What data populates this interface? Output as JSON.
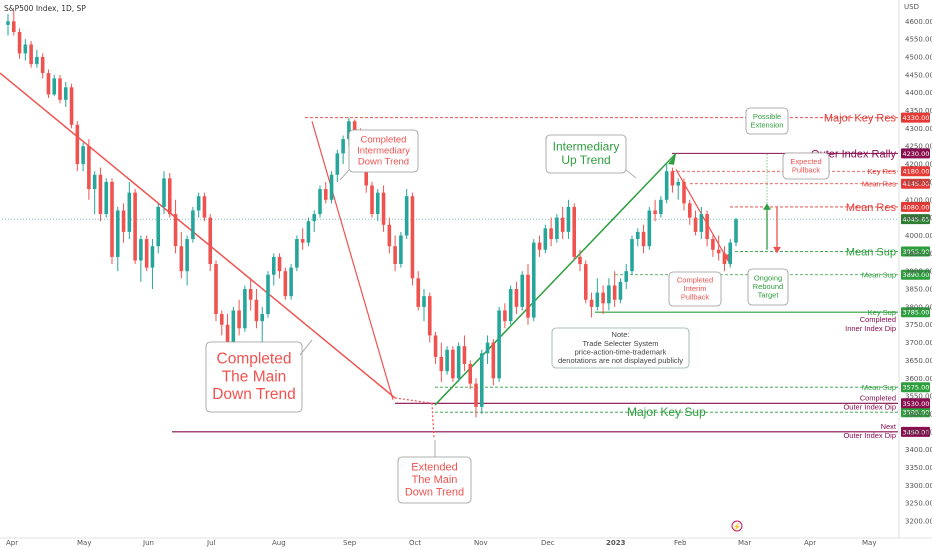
{
  "header": {
    "title": "S&P500 Index, 1D, SP",
    "currency": "USD"
  },
  "chart_data": {
    "type": "candlestick",
    "title": "S&P500 Index, 1D, SP",
    "ylim": [
      3175,
      4640
    ],
    "y_ticks": [
      3200,
      3250,
      3300,
      3350,
      3400,
      3450,
      3500,
      3550,
      3600,
      3650,
      3700,
      3750,
      3800,
      3850,
      3900,
      3950,
      4000,
      4050,
      4100,
      4150,
      4200,
      4250,
      4300,
      4350,
      4400,
      4450,
      4500,
      4550,
      4600
    ],
    "x_ticks": [
      "Apr",
      "May",
      "Jun",
      "Jul",
      "Aug",
      "Sep",
      "Oct",
      "Nov",
      "Dec",
      "2023",
      "Feb",
      "Mar",
      "Apr",
      "May"
    ],
    "last_price": "4045.65",
    "levels": [
      {
        "name": "Major Key Res",
        "value": 4330,
        "tag": "4330.00",
        "color": "#e53935",
        "style": "dashed",
        "label_size": "big",
        "x0": 305
      },
      {
        "name": "Outer Index Rally",
        "value": 4230,
        "tag": "4230.00",
        "color": "#880e4f",
        "style": "solid",
        "label_size": "big",
        "x0": 672
      },
      {
        "name": "Key Res",
        "value": 4180,
        "tag": "4180.00",
        "color": "#e53935",
        "style": "dashed",
        "label_size": "small",
        "x0": 672
      },
      {
        "name": "Mean Res",
        "value": 4145,
        "tag": "4145.00",
        "color": "#e53935",
        "style": "dashed",
        "label_size": "small",
        "x0": 690
      },
      {
        "name": "Mean Res",
        "value": 4080,
        "tag": "4080.00",
        "color": "#e53935",
        "style": "dashed",
        "label_size": "big",
        "x0": 730
      },
      {
        "name": "Mean Sup",
        "value": 3955,
        "tag": "3955.00",
        "color": "#2e9e3e",
        "style": "dashed",
        "label_size": "big",
        "x0": 735
      },
      {
        "name": "Mean Sup",
        "value": 3890,
        "tag": "3890.00",
        "color": "#2e9e3e",
        "style": "dashed",
        "label_size": "small",
        "x0": 615
      },
      {
        "name": "Key Sup",
        "value": 3785,
        "tag": "3785.00",
        "color": "#2e9e3e",
        "style": "solid",
        "label_size": "small",
        "x0": 595
      },
      {
        "name": "Mean Sup",
        "value": 3575,
        "tag": "3575.00",
        "color": "#2e9e3e",
        "style": "dashed",
        "label_size": "small",
        "x0": 435
      },
      {
        "name": "Major Key Sup",
        "value": 3505,
        "tag": "3505.00",
        "color": "#2e9e3e",
        "style": "dashed",
        "label_size": "none",
        "x0": 435
      },
      {
        "name": "Completed Outer Index Dip",
        "value": 3530,
        "tag": "3530.00",
        "color": "#880e4f",
        "style": "solid",
        "label_size": "none",
        "x0": 395
      },
      {
        "name": "Next Outer Index Dip",
        "value": 3450,
        "tag": "3450.00",
        "color": "#880e4f",
        "style": "solid",
        "label_size": "none",
        "x0": 172
      }
    ],
    "series": [
      {
        "name": "candles",
        "ohlc": [
          [
            4590,
            4620,
            4560,
            4600
          ],
          [
            4600,
            4630,
            4560,
            4570
          ],
          [
            4570,
            4580,
            4495,
            4510
          ],
          [
            4510,
            4550,
            4490,
            4535
          ],
          [
            4535,
            4545,
            4470,
            4480
          ],
          [
            4480,
            4520,
            4470,
            4500
          ],
          [
            4500,
            4510,
            4440,
            4455
          ],
          [
            4455,
            4465,
            4385,
            4395
          ],
          [
            4395,
            4450,
            4390,
            4440
          ],
          [
            4440,
            4450,
            4370,
            4380
          ],
          [
            4380,
            4430,
            4360,
            4415
          ],
          [
            4415,
            4425,
            4300,
            4310
          ],
          [
            4310,
            4320,
            4180,
            4200
          ],
          [
            4200,
            4260,
            4180,
            4250
          ],
          [
            4250,
            4270,
            4100,
            4130
          ],
          [
            4130,
            4180,
            4060,
            4170
          ],
          [
            4170,
            4190,
            4040,
            4060
          ],
          [
            4060,
            4160,
            4050,
            4150
          ],
          [
            4150,
            4160,
            3920,
            3940
          ],
          [
            3940,
            4080,
            3900,
            4070
          ],
          [
            4070,
            4090,
            3980,
            4010
          ],
          [
            4010,
            4150,
            3990,
            4120
          ],
          [
            4120,
            4130,
            3920,
            3930
          ],
          [
            3930,
            4000,
            3870,
            3990
          ],
          [
            3990,
            4000,
            3900,
            3910
          ],
          [
            3910,
            3990,
            3850,
            3970
          ],
          [
            3970,
            4090,
            3950,
            4080
          ],
          [
            4080,
            4180,
            4060,
            4160
          ],
          [
            4160,
            4175,
            4050,
            4060
          ],
          [
            4060,
            4100,
            3950,
            3970
          ],
          [
            3970,
            4010,
            3880,
            3900
          ],
          [
            3900,
            4000,
            3860,
            3990
          ],
          [
            3990,
            4080,
            3980,
            4070
          ],
          [
            4070,
            4120,
            4050,
            4110
          ],
          [
            4110,
            4120,
            4040,
            4050
          ],
          [
            4050,
            4060,
            3900,
            3920
          ],
          [
            3920,
            3930,
            3760,
            3780
          ],
          [
            3780,
            3790,
            3720,
            3750
          ],
          [
            3750,
            3780,
            3640,
            3670
          ],
          [
            3670,
            3800,
            3660,
            3790
          ],
          [
            3790,
            3820,
            3720,
            3740
          ],
          [
            3740,
            3860,
            3730,
            3850
          ],
          [
            3850,
            3880,
            3790,
            3820
          ],
          [
            3820,
            3850,
            3740,
            3760
          ],
          [
            3760,
            3800,
            3700,
            3780
          ],
          [
            3780,
            3900,
            3770,
            3890
          ],
          [
            3890,
            3950,
            3860,
            3940
          ],
          [
            3940,
            3950,
            3880,
            3900
          ],
          [
            3900,
            3910,
            3820,
            3830
          ],
          [
            3830,
            3920,
            3820,
            3910
          ],
          [
            3910,
            4000,
            3900,
            3990
          ],
          [
            3990,
            4020,
            3960,
            3980
          ],
          [
            3980,
            4050,
            3970,
            4040
          ],
          [
            4040,
            4070,
            4010,
            4060
          ],
          [
            4060,
            4140,
            4050,
            4130
          ],
          [
            4130,
            4150,
            4090,
            4100
          ],
          [
            4100,
            4180,
            4090,
            4170
          ],
          [
            4170,
            4240,
            4150,
            4230
          ],
          [
            4230,
            4280,
            4200,
            4270
          ],
          [
            4270,
            4330,
            4250,
            4320
          ],
          [
            4320,
            4325,
            4260,
            4280
          ],
          [
            4280,
            4300,
            4200,
            4210
          ],
          [
            4210,
            4220,
            4120,
            4140
          ],
          [
            4140,
            4150,
            4050,
            4060
          ],
          [
            4060,
            4130,
            4040,
            4120
          ],
          [
            4120,
            4140,
            4010,
            4030
          ],
          [
            4030,
            4050,
            3950,
            3970
          ],
          [
            3970,
            4000,
            3900,
            3920
          ],
          [
            3920,
            4010,
            3910,
            4000
          ],
          [
            4000,
            4130,
            3990,
            4110
          ],
          [
            4110,
            4120,
            3860,
            3880
          ],
          [
            3880,
            3900,
            3790,
            3800
          ],
          [
            3800,
            3850,
            3760,
            3830
          ],
          [
            3830,
            3840,
            3700,
            3720
          ],
          [
            3720,
            3730,
            3640,
            3660
          ],
          [
            3660,
            3700,
            3590,
            3620
          ],
          [
            3620,
            3690,
            3610,
            3680
          ],
          [
            3680,
            3690,
            3590,
            3600
          ],
          [
            3600,
            3700,
            3590,
            3690
          ],
          [
            3690,
            3720,
            3620,
            3640
          ],
          [
            3640,
            3650,
            3570,
            3585
          ],
          [
            3585,
            3600,
            3490,
            3520
          ],
          [
            3520,
            3680,
            3500,
            3670
          ],
          [
            3670,
            3720,
            3640,
            3700
          ],
          [
            3700,
            3710,
            3580,
            3600
          ],
          [
            3600,
            3800,
            3590,
            3790
          ],
          [
            3790,
            3810,
            3740,
            3760
          ],
          [
            3760,
            3860,
            3750,
            3850
          ],
          [
            3850,
            3870,
            3780,
            3800
          ],
          [
            3800,
            3900,
            3790,
            3890
          ],
          [
            3890,
            3920,
            3750,
            3770
          ],
          [
            3770,
            3990,
            3760,
            3980
          ],
          [
            3980,
            4000,
            3940,
            3960
          ],
          [
            3960,
            4030,
            3950,
            4020
          ],
          [
            4020,
            4050,
            3970,
            3990
          ],
          [
            3990,
            4060,
            3980,
            4050
          ],
          [
            4050,
            4080,
            3990,
            4010
          ],
          [
            4010,
            4100,
            3990,
            4080
          ],
          [
            4080,
            4090,
            3930,
            3940
          ],
          [
            3940,
            3960,
            3900,
            3920
          ],
          [
            3920,
            3930,
            3810,
            3820
          ],
          [
            3820,
            3840,
            3770,
            3800
          ],
          [
            3800,
            3880,
            3790,
            3840
          ],
          [
            3840,
            3860,
            3780,
            3810
          ],
          [
            3810,
            3880,
            3790,
            3860
          ],
          [
            3860,
            3900,
            3800,
            3820
          ],
          [
            3820,
            3880,
            3810,
            3870
          ],
          [
            3870,
            3920,
            3850,
            3900
          ],
          [
            3900,
            4000,
            3890,
            3990
          ],
          [
            3990,
            4020,
            3970,
            4010
          ],
          [
            4010,
            4030,
            3950,
            3970
          ],
          [
            3970,
            4080,
            3960,
            4070
          ],
          [
            4070,
            4100,
            4040,
            4060
          ],
          [
            4060,
            4110,
            4050,
            4100
          ],
          [
            4100,
            4200,
            4090,
            4180
          ],
          [
            4180,
            4190,
            4120,
            4140
          ],
          [
            4140,
            4160,
            4100,
            4150
          ],
          [
            4150,
            4160,
            4070,
            4090
          ],
          [
            4090,
            4100,
            4030,
            4050
          ],
          [
            4050,
            4070,
            4000,
            4010
          ],
          [
            4010,
            4080,
            3990,
            4060
          ],
          [
            4060,
            4070,
            3970,
            3990
          ],
          [
            3990,
            4000,
            3940,
            3960
          ],
          [
            3960,
            4000,
            3930,
            3950
          ],
          [
            3950,
            3970,
            3900,
            3920
          ],
          [
            3920,
            3990,
            3910,
            3980
          ],
          [
            3980,
            4050,
            3970,
            4045
          ]
        ]
      }
    ],
    "trend_lines": [
      {
        "name": "down-trend-main",
        "color": "#e53950"
      },
      {
        "name": "down-trend-intermediary",
        "color": "#e53950"
      },
      {
        "name": "up-trend-intermediary",
        "color": "#2e9e3e"
      },
      {
        "name": "pullback-interim",
        "color": "#e53950"
      }
    ]
  },
  "annotations": {
    "completed_main": [
      "Completed",
      "The Main",
      "Down Trend"
    ],
    "completed_intermediary": [
      "Completed",
      "Intermediary",
      "Down Trend"
    ],
    "intermediary_up": [
      "Intermediary",
      "Up Trend"
    ],
    "extended_main": [
      "Extended",
      "The Main",
      "Down Trend"
    ],
    "possible_extension": [
      "Possible",
      "Extension"
    ],
    "expected_pullback": [
      "Expected",
      "Pullback"
    ],
    "completed_interim": [
      "Completed",
      "Interim",
      "Pullback"
    ],
    "ongoing_rebound": [
      "Ongoing",
      "Rebound",
      "Target"
    ],
    "note": [
      "Note:",
      "Trade Selecter System",
      "price-action-time-trademark",
      "denotations are not displayed publicly"
    ],
    "major_key_sup": "Major Key Sup",
    "completed_inner_dip": [
      "Completed",
      "Inner Index Dip"
    ],
    "completed_outer_dip": [
      "Completed",
      "Outer Index Dip"
    ],
    "next_outer_dip": [
      "Next",
      "Outer Index Dip"
    ]
  },
  "colors": {
    "up": "#26a69a",
    "down": "#ef5350",
    "red_label": "#e53935",
    "green_label": "#2e9e3e",
    "maroon": "#880e4f",
    "axis_text": "#555555",
    "last_price_bg": "#2e7d32"
  },
  "icons": {
    "event": "lightning-icon"
  }
}
